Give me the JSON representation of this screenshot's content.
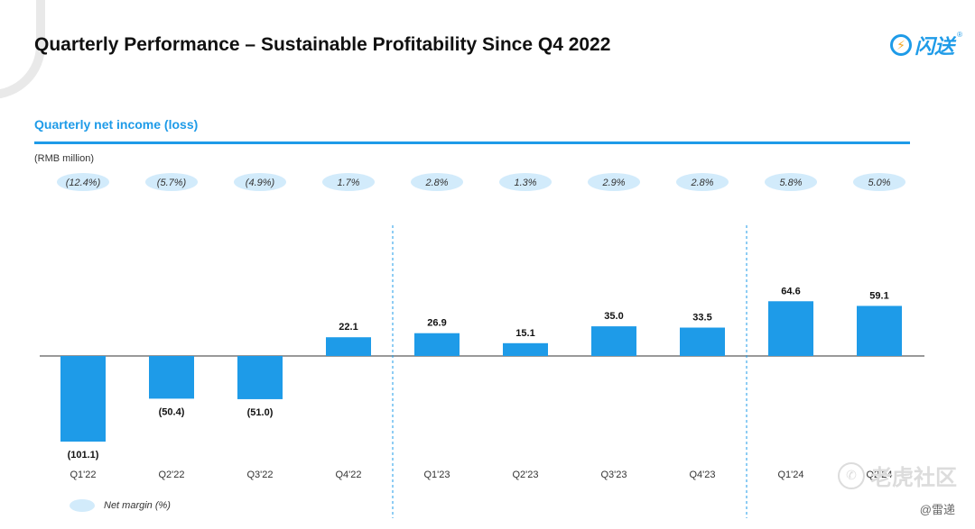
{
  "page": {
    "title": "Quarterly Performance – Sustainable Profitability Since Q4 2022",
    "logo_text": "闪送",
    "logo_mark": "⚡",
    "logo_reg": "®",
    "subtitle": "Quarterly net income (loss)",
    "unit": "(RMB million)",
    "legend_label": "Net margin (%)",
    "watermark_icon": "✆",
    "watermark_text": "老虎社区",
    "credit": "@雷递"
  },
  "colors": {
    "accent": "#1e9be8",
    "bar": "#1e9be8",
    "margin_ellipse": "#d2ebfb"
  },
  "chart_data": {
    "type": "bar",
    "title": "Quarterly net income (loss)",
    "ylabel": "RMB million",
    "categories": [
      "Q1'22",
      "Q2'22",
      "Q3'22",
      "Q4'22",
      "Q1'23",
      "Q2'23",
      "Q3'23",
      "Q4'23",
      "Q1'24",
      "Q2'24"
    ],
    "values": [
      -101.1,
      -50.4,
      -51.0,
      22.1,
      26.9,
      15.1,
      35.0,
      33.5,
      64.6,
      59.1
    ],
    "value_labels": [
      "(101.1)",
      "(50.4)",
      "(51.0)",
      "22.1",
      "26.9",
      "15.1",
      "35.0",
      "33.5",
      "64.6",
      "59.1"
    ],
    "net_margin_labels": [
      "(12.4%)",
      "(5.7%)",
      "(4.9%)",
      "1.7%",
      "2.8%",
      "1.3%",
      "2.9%",
      "2.8%",
      "5.8%",
      "5.0%"
    ],
    "dividers_after_index": [
      3,
      7
    ],
    "ylim": [
      -101.1,
      64.6
    ]
  }
}
